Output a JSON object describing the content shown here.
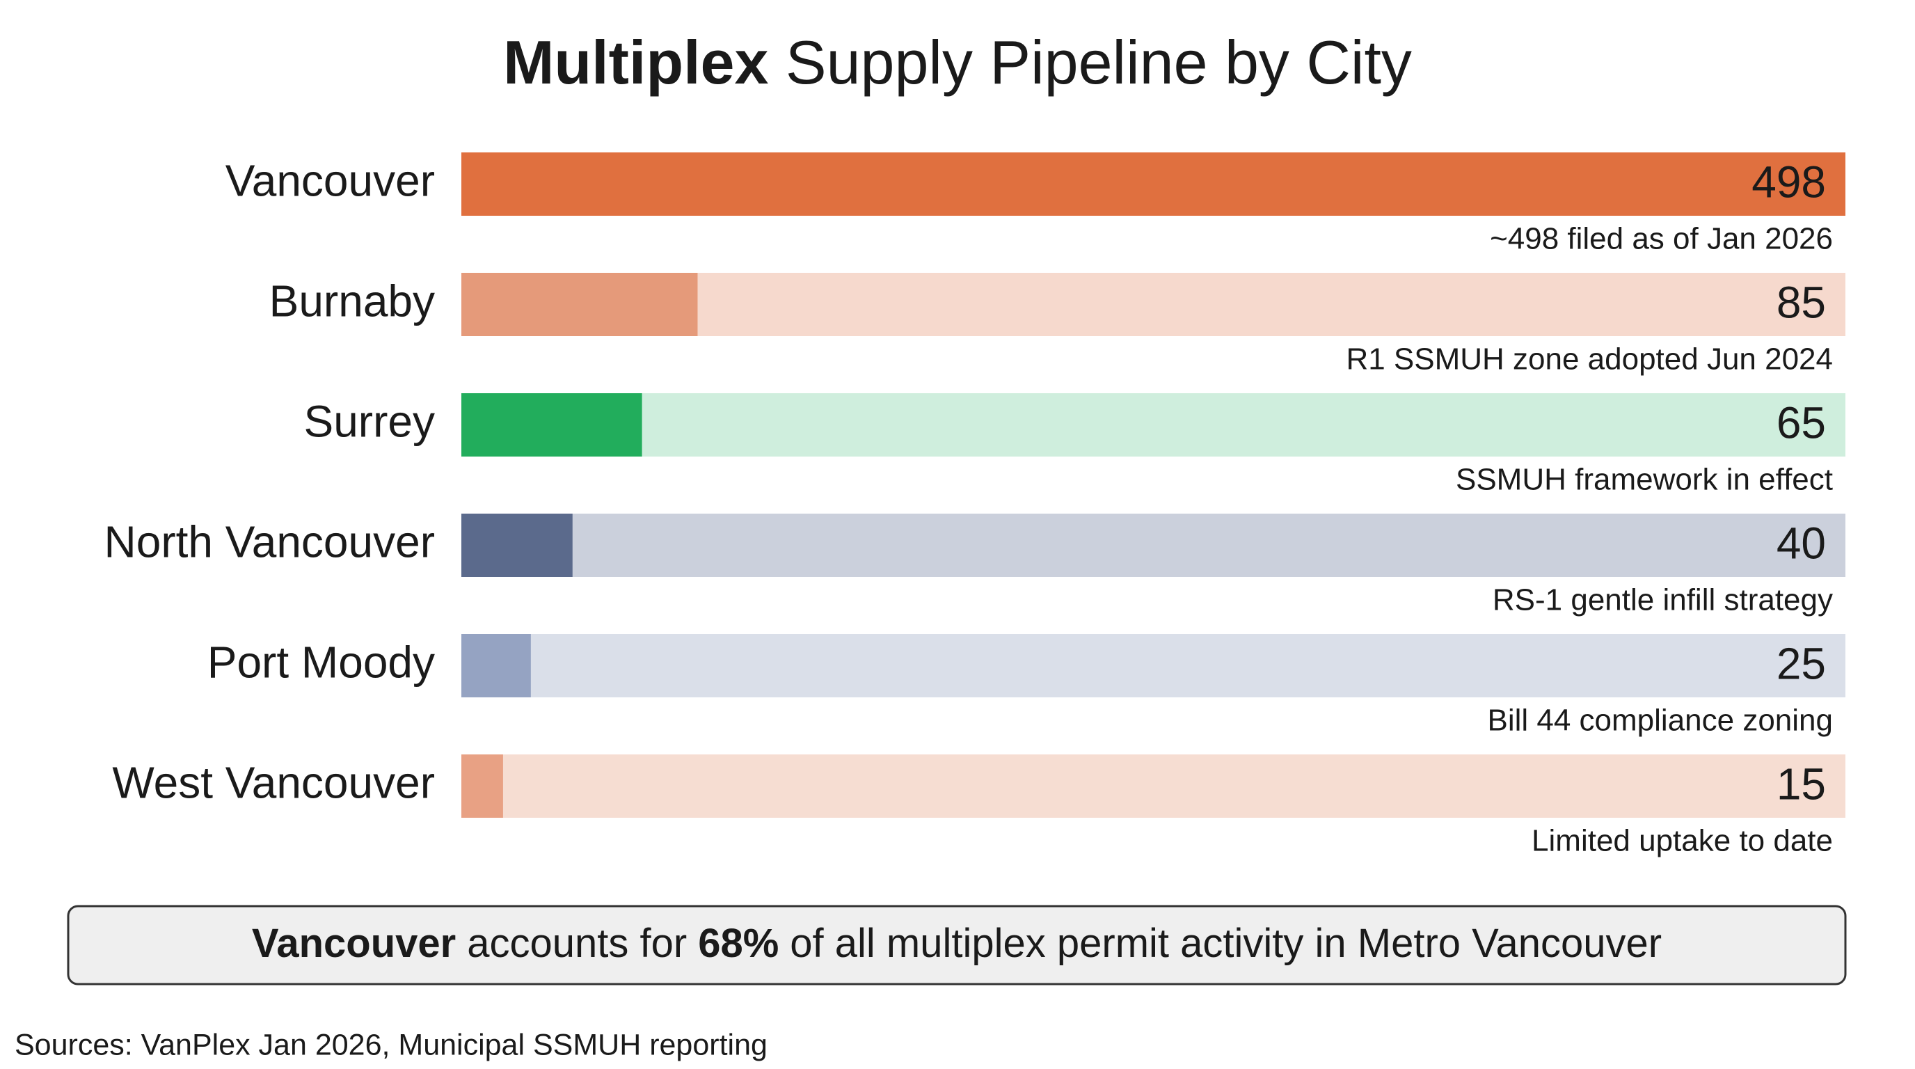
{
  "chart_data": {
    "type": "bar",
    "orientation": "horizontal",
    "title": "Multiplex Supply Pipeline by City",
    "categories": [
      "Vancouver",
      "Burnaby",
      "Surrey",
      "North Vancouver",
      "Port Moody",
      "West Vancouver"
    ],
    "values": [
      498,
      85,
      65,
      40,
      25,
      15
    ],
    "colors": [
      "#e0703f",
      "#e59a7a",
      "#22ad5c",
      "#5b6a8c",
      "#95a3c2",
      "#e8a184"
    ],
    "track_colors": [
      "#e0703f",
      "#f6d9cd",
      "#cfeedd",
      "#cbd0dc",
      "#dadfe9",
      "#f6ddd2"
    ],
    "notes": [
      "~498 filed as of Jan 2026",
      "R1 SSMUH zone adopted Jun 2024",
      "SSMUH framework in effect",
      "RS-1 gentle infill strategy",
      "Bill 44 compliance zoning",
      "Limited uptake to date"
    ],
    "xlim": [
      0,
      498
    ],
    "callout": [
      {
        "text": "Vancouver",
        "bold": true
      },
      {
        "text": "accounts for",
        "bold": false
      },
      {
        "text": "68%",
        "bold": true
      },
      {
        "text": "of all multiplex permit activity in Metro Vancouver",
        "bold": false
      }
    ],
    "source": "Sources: VanPlex Jan 2026, Municipal SSMUH reporting"
  }
}
